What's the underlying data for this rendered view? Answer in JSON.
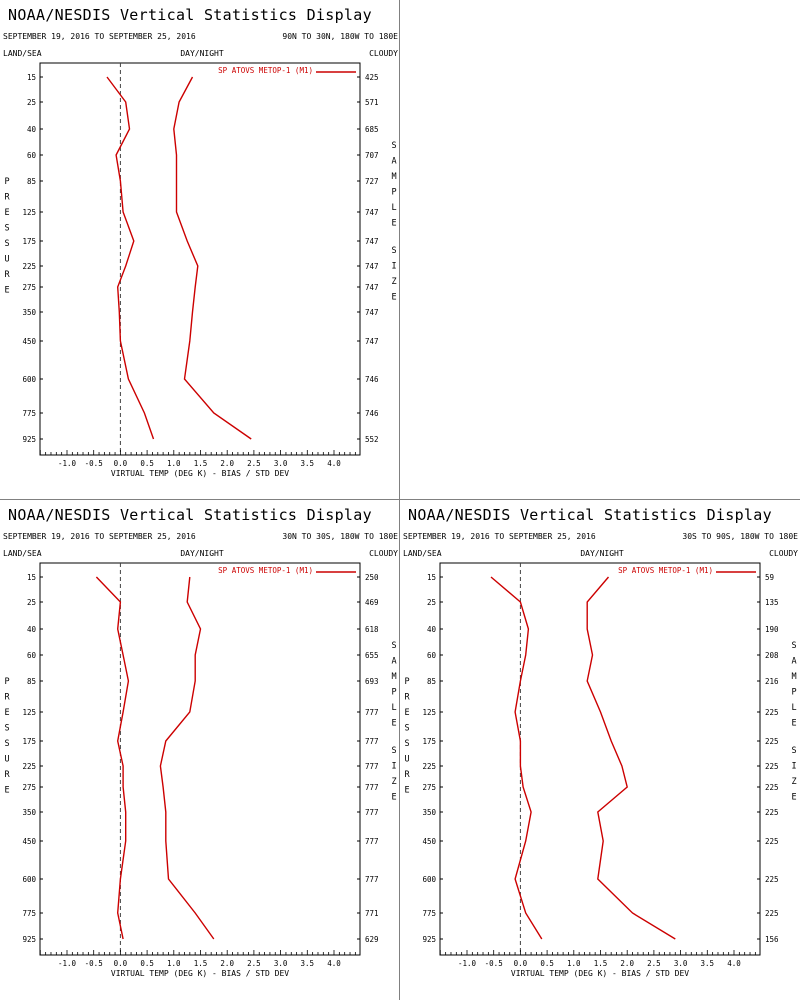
{
  "chart_data": [
    {
      "type": "line",
      "title": "NOAA/NESDIS Vertical Statistics Display",
      "date_range": "SEPTEMBER 19, 2016 TO SEPTEMBER 25, 2016",
      "region": "90N TO 30N, 180W TO 180E",
      "header_left": "LAND/SEA",
      "header_mid": "DAY/NIGHT",
      "header_right": "CLOUDY",
      "ylabel": "PRESSURE",
      "ylabel_right": "SAMPLE SIZE",
      "xlabel": "VIRTUAL TEMP (DEG K) - BIAS / STD DEV",
      "xticks": [
        "-1.0",
        "-0.5",
        "0.0",
        "0.5",
        "1.0",
        "1.5",
        "2.0",
        "2.5",
        "3.0",
        "3.5",
        "4.0"
      ],
      "xlim": [
        -1.5,
        4.5
      ],
      "pressure_levels": [
        "15",
        "25",
        "40",
        "60",
        "85",
        "125",
        "175",
        "225",
        "275",
        "350",
        "450",
        "600",
        "775",
        "925"
      ],
      "sample_size": [
        "425",
        "571",
        "685",
        "707",
        "727",
        "747",
        "747",
        "747",
        "747",
        "747",
        "747",
        "746",
        "746",
        "552"
      ],
      "legend": "SP ATOVS METOP-1 (M1)",
      "series": [
        {
          "name": "bias",
          "values": [
            -0.25,
            0.1,
            0.17,
            -0.08,
            0.0,
            0.05,
            0.25,
            0.1,
            -0.05,
            -0.02,
            0.0,
            0.15,
            0.45,
            0.62
          ]
        },
        {
          "name": "std dev",
          "values": [
            1.35,
            1.1,
            1.0,
            1.05,
            1.05,
            1.05,
            1.25,
            1.45,
            1.4,
            1.35,
            1.3,
            1.2,
            1.75,
            2.45
          ]
        }
      ]
    },
    {
      "type": "line",
      "title": "NOAA/NESDIS Vertical Statistics Display",
      "date_range": "SEPTEMBER 19, 2016 TO SEPTEMBER 25, 2016",
      "region": "30N TO 30S, 180W TO 180E",
      "header_left": "LAND/SEA",
      "header_mid": "DAY/NIGHT",
      "header_right": "CLOUDY",
      "ylabel": "PRESSURE",
      "ylabel_right": "SAMPLE SIZE",
      "xlabel": "VIRTUAL TEMP (DEG K) - BIAS / STD DEV",
      "xticks": [
        "-1.0",
        "-0.5",
        "0.0",
        "0.5",
        "1.0",
        "1.5",
        "2.0",
        "2.5",
        "3.0",
        "3.5",
        "4.0"
      ],
      "xlim": [
        -1.5,
        4.5
      ],
      "pressure_levels": [
        "15",
        "25",
        "40",
        "60",
        "85",
        "125",
        "175",
        "225",
        "275",
        "350",
        "450",
        "600",
        "775",
        "925"
      ],
      "sample_size": [
        "250",
        "469",
        "618",
        "655",
        "693",
        "777",
        "777",
        "777",
        "777",
        "777",
        "777",
        "777",
        "771",
        "629"
      ],
      "legend": "SP ATOVS METOP-1 (M1)",
      "series": [
        {
          "name": "bias",
          "values": [
            -0.45,
            0.0,
            -0.05,
            0.05,
            0.15,
            0.05,
            -0.05,
            0.05,
            0.05,
            0.1,
            0.1,
            0.0,
            -0.05,
            0.05
          ]
        },
        {
          "name": "std dev",
          "values": [
            1.3,
            1.25,
            1.5,
            1.4,
            1.4,
            1.3,
            0.85,
            0.75,
            0.8,
            0.85,
            0.85,
            0.9,
            1.4,
            1.75
          ]
        }
      ]
    },
    {
      "type": "line",
      "title": "NOAA/NESDIS Vertical Statistics Display",
      "date_range": "SEPTEMBER 19, 2016 TO SEPTEMBER 25, 2016",
      "region": "30S TO 90S, 180W TO 180E",
      "header_left": "LAND/SEA",
      "header_mid": "DAY/NIGHT",
      "header_right": "CLOUDY",
      "ylabel": "PRESSURE",
      "ylabel_right": "SAMPLE SIZE",
      "xlabel": "VIRTUAL TEMP (DEG K) - BIAS / STD DEV",
      "xticks": [
        "-1.0",
        "-0.5",
        "0.0",
        "0.5",
        "1.0",
        "1.5",
        "2.0",
        "2.5",
        "3.0",
        "3.5",
        "4.0"
      ],
      "xlim": [
        -1.5,
        4.5
      ],
      "pressure_levels": [
        "15",
        "25",
        "40",
        "60",
        "85",
        "125",
        "175",
        "225",
        "275",
        "350",
        "450",
        "600",
        "775",
        "925"
      ],
      "sample_size": [
        "59",
        "135",
        "190",
        "208",
        "216",
        "225",
        "225",
        "225",
        "225",
        "225",
        "225",
        "225",
        "225",
        "156"
      ],
      "legend": "SP ATOVS METOP-1 (M1)",
      "series": [
        {
          "name": "bias",
          "values": [
            -0.55,
            0.0,
            0.15,
            0.1,
            0.0,
            -0.1,
            0.0,
            0.0,
            0.05,
            0.2,
            0.1,
            -0.1,
            0.1,
            0.4
          ]
        },
        {
          "name": "std dev",
          "values": [
            1.65,
            1.25,
            1.25,
            1.35,
            1.25,
            1.5,
            1.7,
            1.9,
            2.0,
            1.45,
            1.55,
            1.45,
            2.1,
            2.9
          ]
        }
      ]
    }
  ]
}
